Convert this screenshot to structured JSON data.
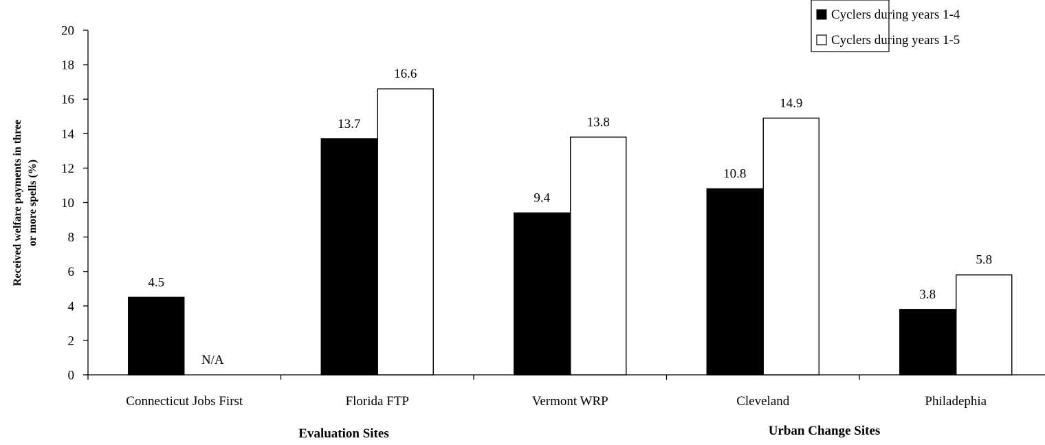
{
  "chart_data": {
    "type": "bar",
    "title": "",
    "ylabel": [
      "Received welfare payments in three",
      "or more spells (%)"
    ],
    "xlabel": "",
    "ylim": [
      0,
      20
    ],
    "yticks": [
      "0",
      "2",
      "4",
      "6",
      "8",
      "10",
      "12",
      "14",
      "16",
      "18",
      "20"
    ],
    "categories": [
      "Connecticut Jobs First",
      "Florida FTP",
      "Vermont WRP",
      "Cleveland",
      "Philadephia"
    ],
    "series": [
      {
        "name": "Cyclers during years 1-4",
        "color": "#000000",
        "values": [
          4.5,
          13.7,
          9.4,
          10.8,
          3.8
        ],
        "labels": [
          "4.5",
          "13.7",
          "9.4",
          "10.8",
          "3.8"
        ]
      },
      {
        "name": "Cyclers during years 1-5",
        "color": "#ffffff",
        "values": [
          null,
          16.6,
          13.8,
          14.9,
          5.8
        ],
        "labels": [
          "N/A",
          "16.6",
          "13.8",
          "14.9",
          "5.8"
        ]
      }
    ],
    "group_labels": [
      "Evaluation Sites",
      "Urban Change Sites"
    ],
    "legend_position": "top-right",
    "grid": false
  }
}
